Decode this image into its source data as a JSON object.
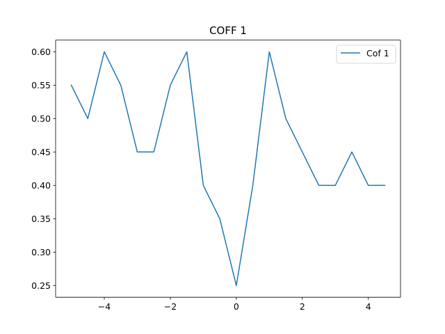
{
  "chart_data": {
    "type": "line",
    "title": "COFF 1",
    "xlabel": "",
    "ylabel": "",
    "xlim": [
      -5.475,
      4.975
    ],
    "ylim": [
      0.2325,
      0.6175
    ],
    "xticks": [
      -4,
      -2,
      0,
      2,
      4
    ],
    "xtick_labels": [
      "−4",
      "−2",
      "0",
      "2",
      "4"
    ],
    "yticks": [
      0.25,
      0.3,
      0.35,
      0.4,
      0.45,
      0.5,
      0.55,
      0.6
    ],
    "ytick_labels": [
      "0.25",
      "0.30",
      "0.35",
      "0.40",
      "0.45",
      "0.50",
      "0.55",
      "0.60"
    ],
    "grid": false,
    "legend_position": "top-right",
    "series": [
      {
        "name": "Cof 1",
        "color": "#1f77b4",
        "x": [
          -5.0,
          -4.5,
          -4.0,
          -3.5,
          -3.0,
          -2.5,
          -2.0,
          -1.5,
          -1.0,
          -0.5,
          0.0,
          0.5,
          1.0,
          1.5,
          2.0,
          2.5,
          3.0,
          3.5,
          4.0,
          4.5
        ],
        "y": [
          0.55,
          0.5,
          0.6,
          0.55,
          0.45,
          0.45,
          0.55,
          0.6,
          0.4,
          0.35,
          0.25,
          0.4,
          0.6,
          0.5,
          0.45,
          0.4,
          0.4,
          0.45,
          0.4,
          0.4
        ]
      }
    ]
  }
}
